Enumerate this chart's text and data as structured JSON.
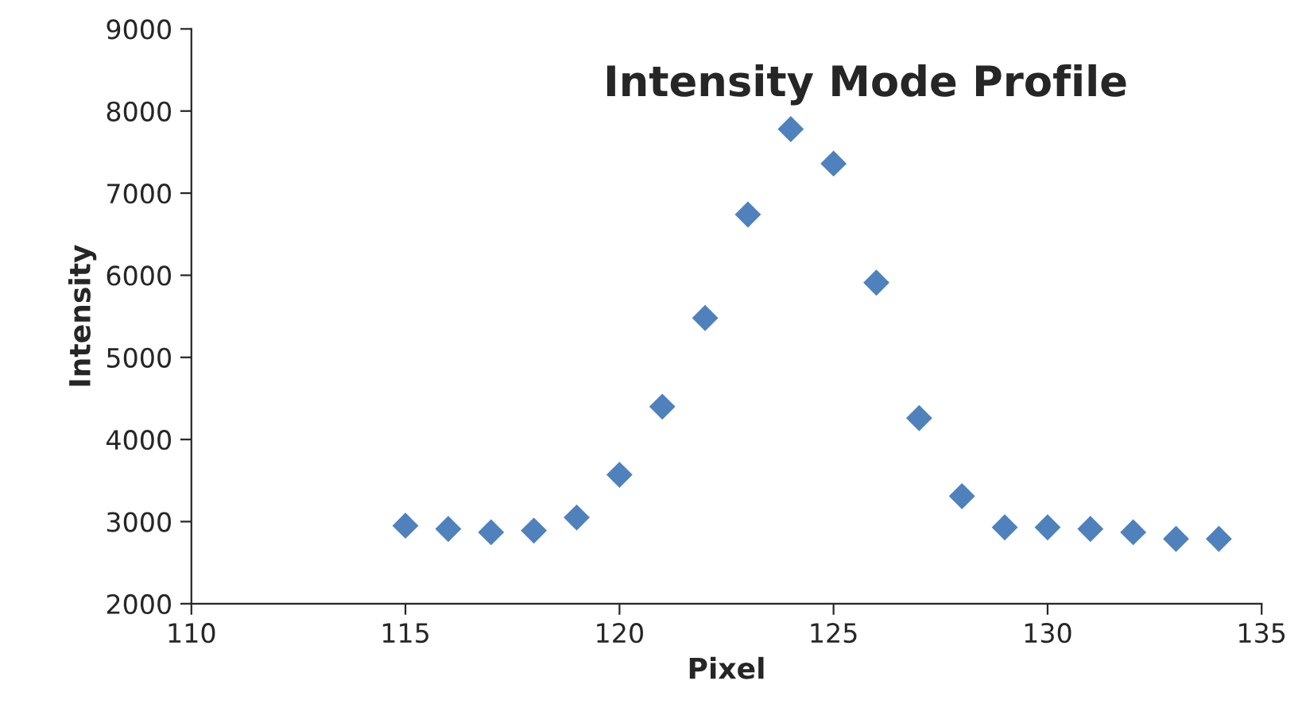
{
  "chart_data": {
    "type": "scatter",
    "title": "Intensity Mode Profile",
    "xlabel": "Pixel",
    "ylabel": "Intensity",
    "x": [
      115,
      116,
      117,
      118,
      119,
      120,
      121,
      122,
      123,
      124,
      125,
      126,
      127,
      128,
      129,
      130,
      131,
      132,
      133,
      134
    ],
    "series": [
      {
        "color": "#4f81bd",
        "values": [
          2950,
          2910,
          2870,
          2890,
          3050,
          3570,
          4400,
          5480,
          6740,
          7780,
          7360,
          5910,
          4260,
          3310,
          2930,
          2930,
          2910,
          2870,
          2790,
          2790
        ]
      }
    ],
    "xlim": [
      110,
      135
    ],
    "xticks": [
      110,
      115,
      120,
      125,
      130,
      135
    ],
    "ylim": [
      2000,
      9000
    ],
    "yticks": [
      2000,
      3000,
      4000,
      5000,
      6000,
      7000,
      8000,
      9000
    ],
    "marker": "diamond",
    "grid": false,
    "legend": false
  }
}
